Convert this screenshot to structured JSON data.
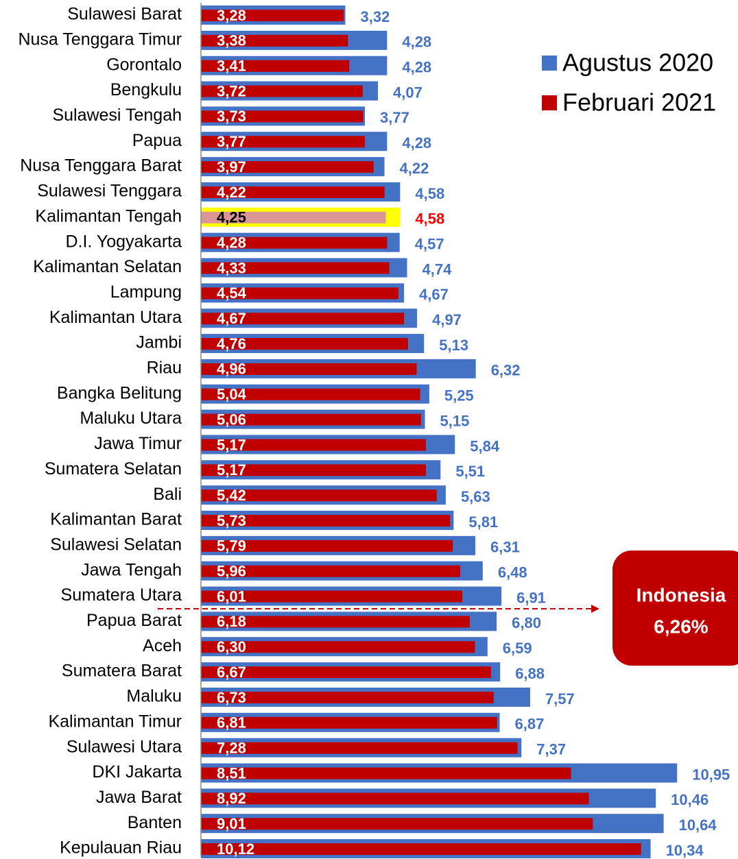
{
  "chart_data": {
    "type": "barh",
    "categories": [
      "Sulawesi Barat",
      "Nusa Tenggara Timur",
      "Gorontalo",
      "Bengkulu",
      "Sulawesi Tengah",
      "Papua",
      "Nusa Tenggara Barat",
      "Sulawesi Tenggara",
      "Kalimantan Tengah",
      "D.I. Yogyakarta",
      "Kalimantan Selatan",
      "Lampung",
      "Kalimantan Utara",
      "Jambi",
      "Riau",
      "Bangka Belitung",
      "Maluku Utara",
      "Jawa Timur",
      "Sumatera Selatan",
      "Bali",
      "Kalimantan Barat",
      "Sulawesi Selatan",
      "Jawa Tengah",
      "Sumatera Utara",
      "Papua Barat",
      "Aceh",
      "Sumatera Barat",
      "Maluku",
      "Kalimantan Timur",
      "Sulawesi Utara",
      "DKI Jakarta",
      "Jawa Barat",
      "Banten",
      "Kepulauan Riau"
    ],
    "series": [
      {
        "name": "Agustus 2020",
        "color": "#4472c4",
        "values": [
          3.32,
          4.28,
          4.28,
          4.07,
          3.77,
          4.28,
          4.22,
          4.58,
          4.58,
          4.57,
          4.74,
          4.67,
          4.97,
          5.13,
          6.32,
          5.25,
          5.15,
          5.84,
          5.51,
          5.63,
          5.81,
          6.31,
          6.48,
          6.91,
          6.8,
          6.59,
          6.88,
          7.57,
          6.87,
          7.37,
          10.95,
          10.46,
          10.64,
          10.34
        ],
        "value_labels": [
          "3,32",
          "4,28",
          "4,28",
          "4,07",
          "3,77",
          "4,28",
          "4,22",
          "4,58",
          "4,58",
          "4,57",
          "4,74",
          "4,67",
          "4,97",
          "5,13",
          "6,32",
          "5,25",
          "5,15",
          "5,84",
          "5,51",
          "5,63",
          "5,81",
          "6,31",
          "6,48",
          "6,91",
          "6,80",
          "6,59",
          "6,88",
          "7,57",
          "6,87",
          "7,37",
          "10,95",
          "10,46",
          "10,64",
          "10,34"
        ]
      },
      {
        "name": "Februari 2021",
        "color": "#c00000",
        "values": [
          3.28,
          3.38,
          3.41,
          3.72,
          3.73,
          3.77,
          3.97,
          4.22,
          4.25,
          4.28,
          4.33,
          4.54,
          4.67,
          4.76,
          4.96,
          5.04,
          5.06,
          5.17,
          5.17,
          5.42,
          5.73,
          5.79,
          5.96,
          6.01,
          6.18,
          6.3,
          6.67,
          6.73,
          6.81,
          7.28,
          8.51,
          8.92,
          9.01,
          10.12
        ],
        "value_labels": [
          "3,28",
          "3,38",
          "3,41",
          "3,72",
          "3,73",
          "3,77",
          "3,97",
          "4,22",
          "4,25",
          "4,28",
          "4,33",
          "4,54",
          "4,67",
          "4,76",
          "4,96",
          "5,04",
          "5,06",
          "5,17",
          "5,17",
          "5,42",
          "5,73",
          "5,79",
          "5,96",
          "6,01",
          "6,18",
          "6,30",
          "6,67",
          "6,73",
          "6,81",
          "7,28",
          "8,51",
          "8,92",
          "9,01",
          "10,12"
        ]
      }
    ],
    "xlim": [
      0,
      12.35
    ],
    "highlight": {
      "index": 8,
      "background": "#ffff00",
      "bar_color": "#d99694",
      "label_color": "#000000",
      "value_label_color": "#ff0000"
    },
    "legend": "top-right",
    "annotation": {
      "lines": [
        "Indonesia",
        "6,26%"
      ],
      "color": "#c00000"
    }
  }
}
